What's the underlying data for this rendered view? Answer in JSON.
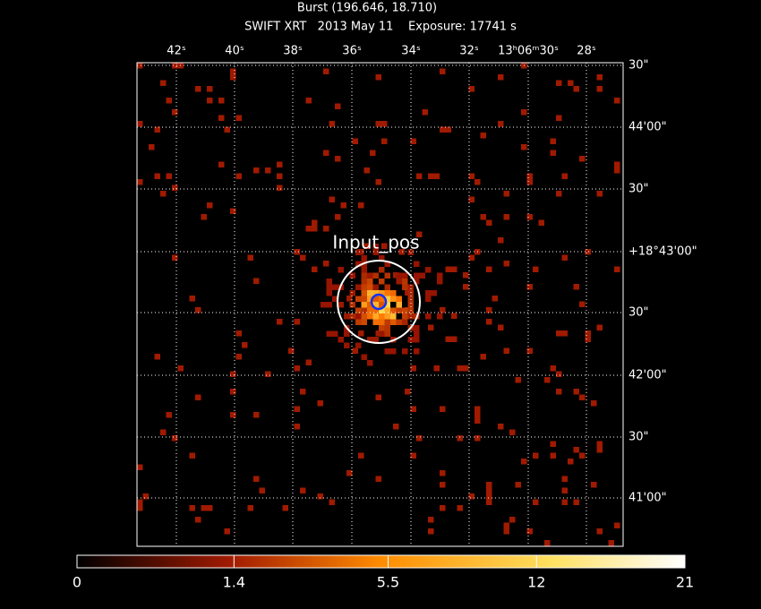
{
  "header": {
    "title": "Burst (196.646, 18.710)",
    "subtitle": "SWIFT XRT   2013 May 11    Exposure: 17741 s"
  },
  "ra_labels": [
    "42ˢ",
    "40ˢ",
    "38ˢ",
    "36ˢ",
    "34ˢ",
    "32ˢ",
    "13ʰ06ᵐ30ˢ",
    "28ˢ"
  ],
  "dec_labels": [
    "30\"",
    "44'00\"",
    "30\"",
    "+18°43'00\"",
    "30\"",
    "42'00\"",
    "30\"",
    "41'00\""
  ],
  "annotation": "Input_pos",
  "colorbar": {
    "scale": "sqrt",
    "range": [
      0,
      21
    ],
    "ticks": [
      0,
      1.4,
      5.5,
      12,
      21
    ]
  }
}
